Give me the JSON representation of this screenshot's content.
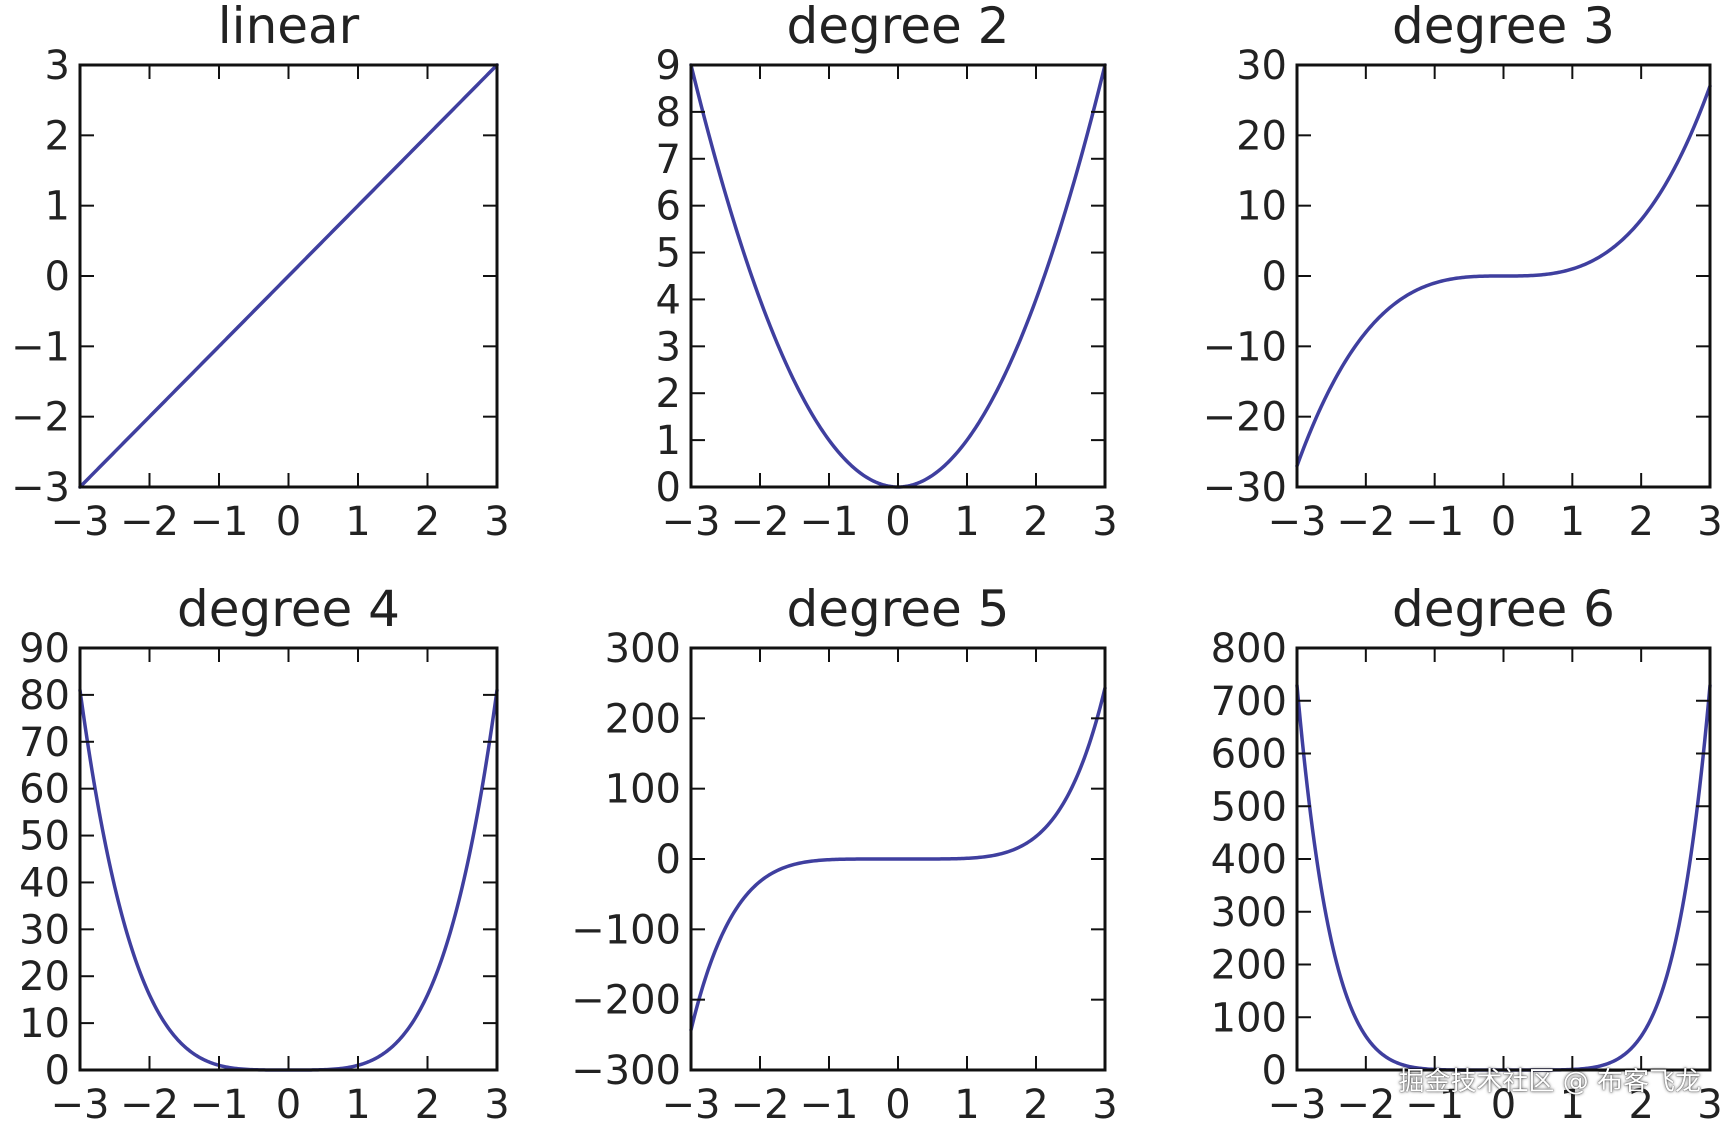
{
  "chart_data": [
    {
      "type": "line",
      "title": "linear",
      "xlim": [
        -3,
        3
      ],
      "ylim": [
        -3,
        3
      ],
      "xticks": [
        -3,
        -2,
        -1,
        0,
        1,
        2,
        3
      ],
      "yticks": [
        -3,
        -2,
        -1,
        0,
        1,
        2,
        3
      ],
      "xtick_labels": [
        "−3",
        "−2",
        "−1",
        "0",
        "1",
        "2",
        "3"
      ],
      "ytick_labels": [
        "−3",
        "−2",
        "−1",
        "0",
        "1",
        "2",
        "3"
      ],
      "series": [
        {
          "x": [
            -3,
            -2,
            -1,
            0,
            1,
            2,
            3
          ],
          "y": [
            -3,
            -2,
            -1,
            0,
            1,
            2,
            3
          ]
        }
      ]
    },
    {
      "type": "line",
      "title": "degree 2",
      "xlim": [
        -3,
        3
      ],
      "ylim": [
        0,
        9
      ],
      "xticks": [
        -3,
        -2,
        -1,
        0,
        1,
        2,
        3
      ],
      "yticks": [
        0,
        1,
        2,
        3,
        4,
        5,
        6,
        7,
        8,
        9
      ],
      "xtick_labels": [
        "−3",
        "−2",
        "−1",
        "0",
        "1",
        "2",
        "3"
      ],
      "ytick_labels": [
        "0",
        "1",
        "2",
        "3",
        "4",
        "5",
        "6",
        "7",
        "8",
        "9"
      ],
      "series": [
        {
          "x": [
            -3,
            -2.5,
            -2,
            -1.5,
            -1,
            -0.5,
            0,
            0.5,
            1,
            1.5,
            2,
            2.5,
            3
          ],
          "y": [
            9,
            6.25,
            4,
            2.25,
            1,
            0.25,
            0,
            0.25,
            1,
            2.25,
            4,
            6.25,
            9
          ]
        }
      ]
    },
    {
      "type": "line",
      "title": "degree 3",
      "xlim": [
        -3,
        3
      ],
      "ylim": [
        -30,
        30
      ],
      "xticks": [
        -3,
        -2,
        -1,
        0,
        1,
        2,
        3
      ],
      "yticks": [
        -30,
        -20,
        -10,
        0,
        10,
        20,
        30
      ],
      "xtick_labels": [
        "−3",
        "−2",
        "−1",
        "0",
        "1",
        "2",
        "3"
      ],
      "ytick_labels": [
        "−30",
        "−20",
        "−10",
        "0",
        "10",
        "20",
        "30"
      ],
      "series": [
        {
          "x": [
            -3,
            -2.5,
            -2,
            -1.5,
            -1,
            -0.5,
            0,
            0.5,
            1,
            1.5,
            2,
            2.5,
            3
          ],
          "y": [
            -27,
            -15.6,
            -8,
            -3.4,
            -1,
            -0.1,
            0,
            0.1,
            1,
            3.4,
            8,
            15.6,
            27
          ]
        }
      ]
    },
    {
      "type": "line",
      "title": "degree 4",
      "xlim": [
        -3,
        3
      ],
      "ylim": [
        0,
        90
      ],
      "xticks": [
        -3,
        -2,
        -1,
        0,
        1,
        2,
        3
      ],
      "yticks": [
        0,
        10,
        20,
        30,
        40,
        50,
        60,
        70,
        80,
        90
      ],
      "xtick_labels": [
        "−3",
        "−2",
        "−1",
        "0",
        "1",
        "2",
        "3"
      ],
      "ytick_labels": [
        "0",
        "10",
        "20",
        "30",
        "40",
        "50",
        "60",
        "70",
        "80",
        "90"
      ],
      "series": [
        {
          "x": [
            -3,
            -2.5,
            -2,
            -1.5,
            -1,
            -0.5,
            0,
            0.5,
            1,
            1.5,
            2,
            2.5,
            3
          ],
          "y": [
            81,
            39.1,
            16,
            5.1,
            1,
            0.1,
            0,
            0.1,
            1,
            5.1,
            16,
            39.1,
            81
          ]
        }
      ]
    },
    {
      "type": "line",
      "title": "degree 5",
      "xlim": [
        -3,
        3
      ],
      "ylim": [
        -300,
        300
      ],
      "xticks": [
        -3,
        -2,
        -1,
        0,
        1,
        2,
        3
      ],
      "yticks": [
        -300,
        -200,
        -100,
        0,
        100,
        200,
        300
      ],
      "xtick_labels": [
        "−3",
        "−2",
        "−1",
        "0",
        "1",
        "2",
        "3"
      ],
      "ytick_labels": [
        "−300",
        "−200",
        "−100",
        "0",
        "100",
        "200",
        "300"
      ],
      "series": [
        {
          "x": [
            -3,
            -2.5,
            -2,
            -1.5,
            -1,
            -0.5,
            0,
            0.5,
            1,
            1.5,
            2,
            2.5,
            3
          ],
          "y": [
            -243,
            -97.7,
            -32,
            -7.6,
            -1,
            -0.03,
            0,
            0.03,
            1,
            7.6,
            32,
            97.7,
            243
          ]
        }
      ]
    },
    {
      "type": "line",
      "title": "degree 6",
      "xlim": [
        -3,
        3
      ],
      "ylim": [
        0,
        800
      ],
      "xticks": [
        -3,
        -2,
        -1,
        0,
        1,
        2,
        3
      ],
      "yticks": [
        0,
        100,
        200,
        300,
        400,
        500,
        600,
        700,
        800
      ],
      "xtick_labels": [
        "−3",
        "−2",
        "−1",
        "0",
        "1",
        "2",
        "3"
      ],
      "ytick_labels": [
        "0",
        "100",
        "200",
        "300",
        "400",
        "500",
        "600",
        "700",
        "800"
      ],
      "series": [
        {
          "x": [
            -3,
            -2.5,
            -2,
            -1.5,
            -1,
            -0.5,
            0,
            0.5,
            1,
            1.5,
            2,
            2.5,
            3
          ],
          "y": [
            729,
            244.1,
            64,
            11.4,
            1,
            0.02,
            0,
            0.02,
            1,
            11.4,
            64,
            244.1,
            729
          ]
        }
      ]
    }
  ],
  "line_color": "#3f3f9f",
  "watermark": "掘金技术社区 @ 布客飞龙"
}
